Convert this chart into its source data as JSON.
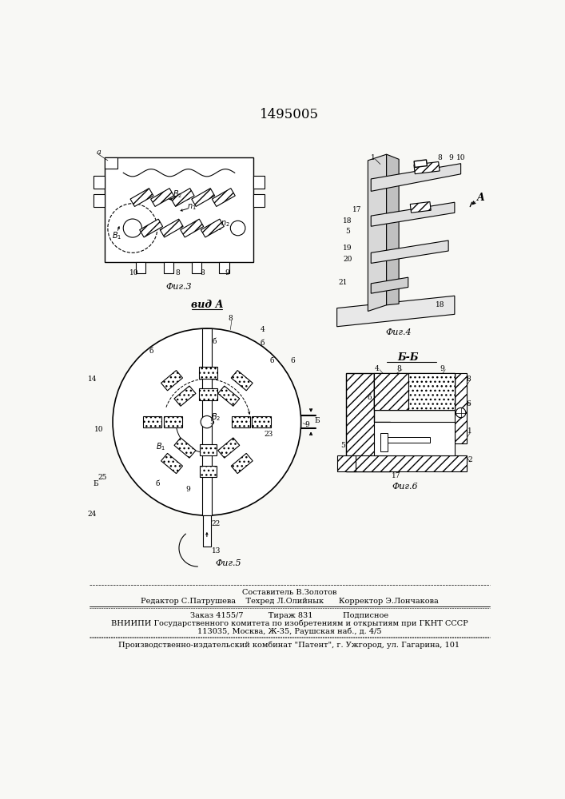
{
  "patent_number": "1495005",
  "bg": "#f8f8f5",
  "footer_lines": [
    "Составитель В.Золотов",
    "Редактор С.Патрушева    Техред Л.Олийнык      Корректор Э.Лончакова",
    "Заказ 4155/7          Тираж 831            Подписное",
    "ВНИИПИ Государственного комитета по изобретениям и открытиям при ГКНТ СССР",
    "113035, Москва, Ж-35, Раушская наб., д. 4/5",
    "Производственно-издательский комбинат \"Патент\", г. Ужгород, ул. Гагарина, 101"
  ],
  "fig3_caption": "Фиг.3",
  "fig4_caption": "Фиг.4",
  "fig5_caption": "Фиг.5",
  "fig6_caption": "Фиг.6"
}
